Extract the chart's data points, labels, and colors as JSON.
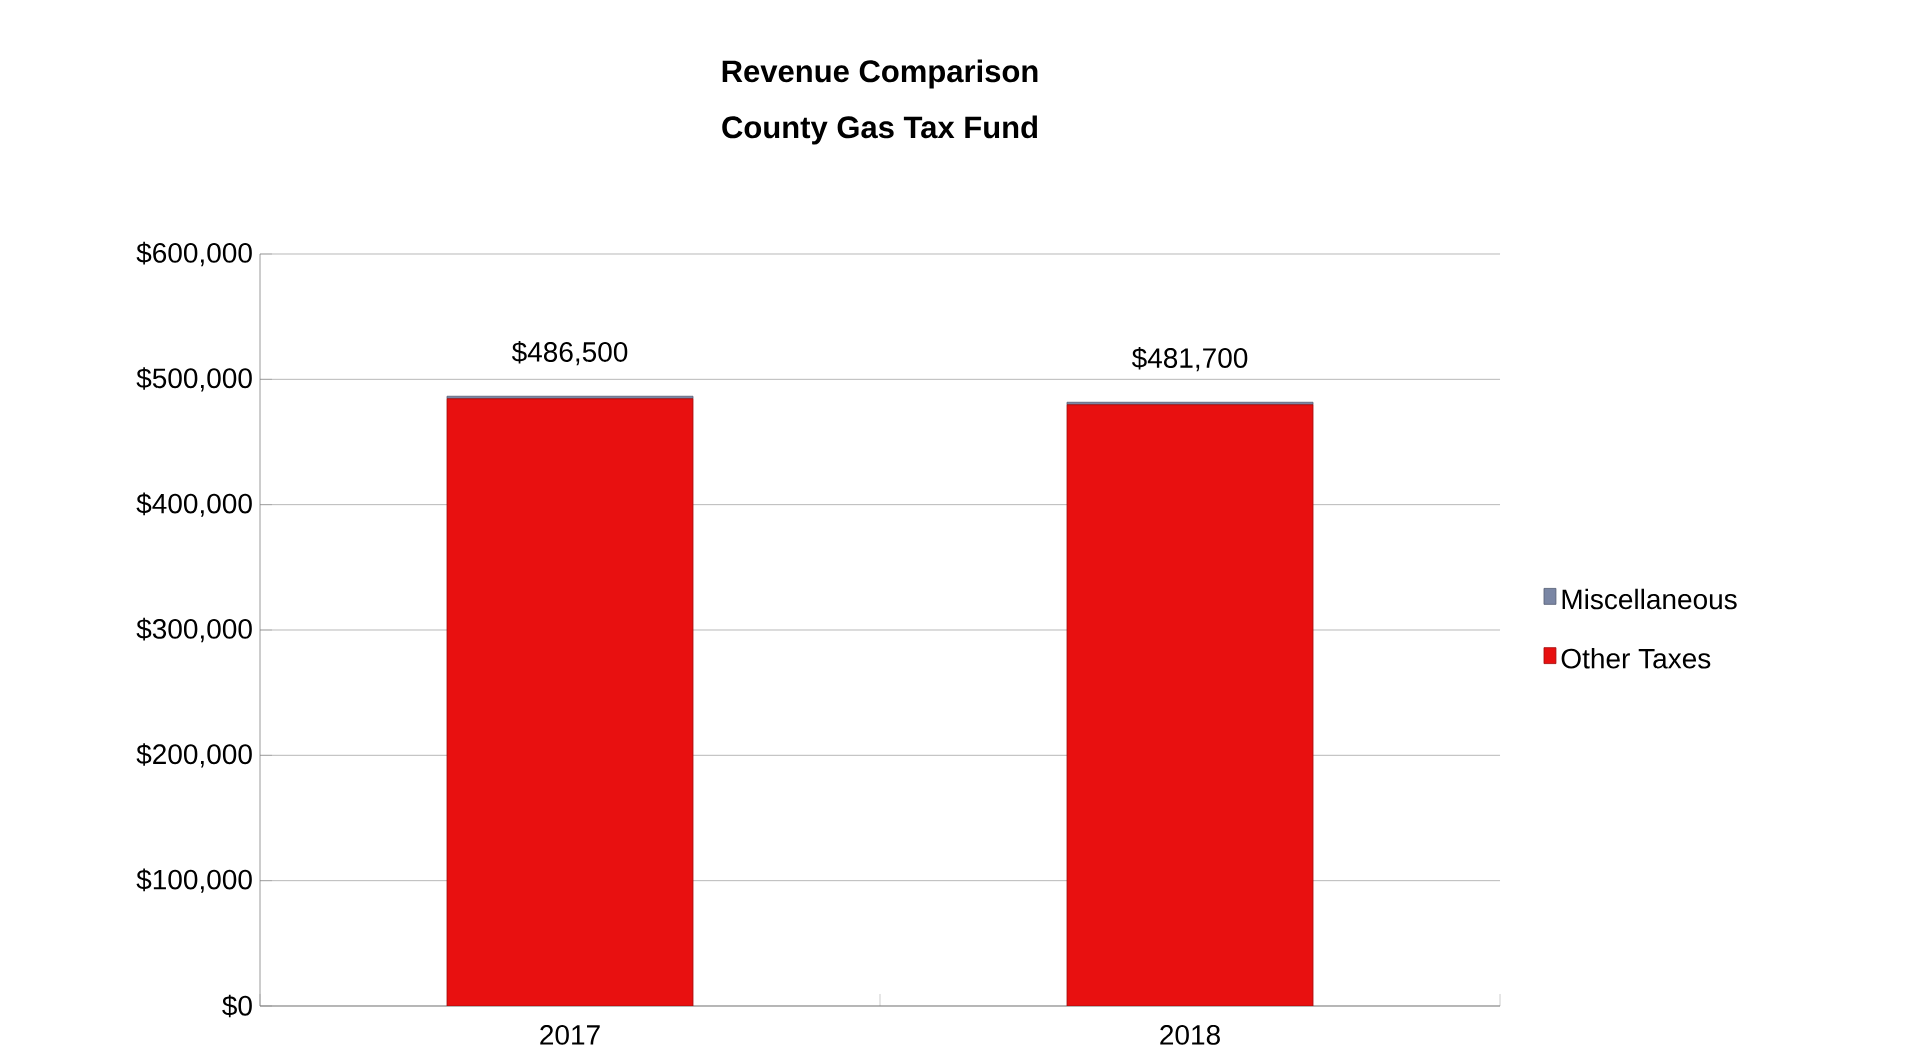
{
  "chart_data": {
    "type": "bar",
    "title": "Revenue Comparison",
    "subtitle": "County Gas Tax Fund",
    "categories": [
      "2017",
      "2018"
    ],
    "stacked": true,
    "series": [
      {
        "name": "Other Taxes",
        "color": "#e81010",
        "values": [
          484500,
          479700
        ]
      },
      {
        "name": "Miscellaneous",
        "color": "#7a86a4",
        "values": [
          2000,
          2000
        ]
      }
    ],
    "totals": [
      "$486,500",
      "$481,700"
    ],
    "ylim": [
      0,
      600000
    ],
    "yticks": [
      {
        "value": 0,
        "label": "$0"
      },
      {
        "value": 100000,
        "label": "$100,000"
      },
      {
        "value": 200000,
        "label": "$200,000"
      },
      {
        "value": 300000,
        "label": "$300,000"
      },
      {
        "value": 400000,
        "label": "$400,000"
      },
      {
        "value": 500000,
        "label": "$500,000"
      },
      {
        "value": 600000,
        "label": "$600,000"
      }
    ],
    "grid": "y",
    "legend": "right"
  }
}
